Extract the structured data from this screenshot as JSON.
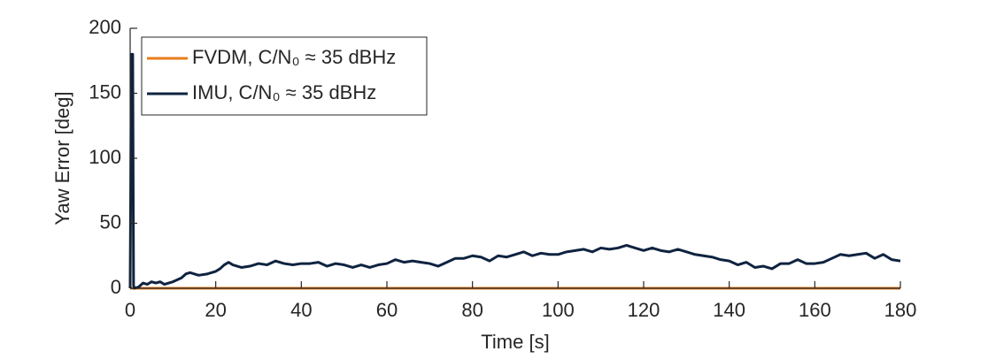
{
  "chart_data": {
    "type": "line",
    "xlabel": "Time [s]",
    "ylabel": "Yaw Error [deg]",
    "xlim": [
      0,
      180
    ],
    "ylim": [
      0,
      200
    ],
    "xticks": [
      0,
      20,
      40,
      60,
      80,
      100,
      120,
      140,
      160,
      180
    ],
    "yticks": [
      0,
      50,
      100,
      150,
      200
    ],
    "grid": false,
    "legend": "upper left",
    "series": [
      {
        "name": "FVDM, C/N₀ ≈ 35 dBHz",
        "color": "#e87d1e",
        "x": [
          0,
          180
        ],
        "values": [
          0,
          0
        ]
      },
      {
        "name": "IMU, C/N₀ ≈ 35 dBHz",
        "color": "#0f2340",
        "x": [
          0,
          0.3,
          0.6,
          0.8,
          1,
          2,
          3,
          4,
          5,
          6,
          7,
          8,
          10,
          12,
          13,
          14,
          16,
          18,
          20,
          21,
          22,
          23,
          24,
          26,
          28,
          30,
          32,
          34,
          36,
          38,
          40,
          42,
          44,
          46,
          48,
          50,
          52,
          54,
          56,
          58,
          60,
          62,
          64,
          66,
          68,
          70,
          72,
          74,
          76,
          78,
          80,
          82,
          84,
          86,
          88,
          90,
          92,
          94,
          96,
          98,
          100,
          102,
          104,
          106,
          108,
          110,
          112,
          114,
          116,
          118,
          120,
          122,
          124,
          126,
          128,
          130,
          132,
          134,
          136,
          138,
          140,
          142,
          144,
          146,
          148,
          150,
          152,
          154,
          156,
          158,
          160,
          162,
          164,
          166,
          168,
          170,
          172,
          174,
          176,
          178,
          180
        ],
        "values": [
          0,
          180,
          180,
          2,
          0,
          1,
          4,
          3,
          5,
          4,
          5,
          3,
          5,
          8,
          11,
          12,
          10,
          11,
          13,
          15,
          18,
          20,
          18,
          16,
          17,
          19,
          18,
          21,
          19,
          18,
          19,
          19,
          20,
          17,
          19,
          18,
          16,
          18,
          16,
          18,
          19,
          22,
          20,
          21,
          20,
          19,
          17,
          20,
          23,
          23,
          25,
          24,
          21,
          25,
          24,
          26,
          28,
          25,
          27,
          26,
          26,
          28,
          29,
          30,
          28,
          31,
          30,
          31,
          33,
          31,
          29,
          31,
          29,
          28,
          30,
          28,
          26,
          25,
          24,
          22,
          21,
          18,
          20,
          16,
          17,
          15,
          19,
          19,
          22,
          19,
          19,
          20,
          23,
          26,
          25,
          26,
          27,
          23,
          26,
          22,
          21
        ]
      }
    ]
  }
}
